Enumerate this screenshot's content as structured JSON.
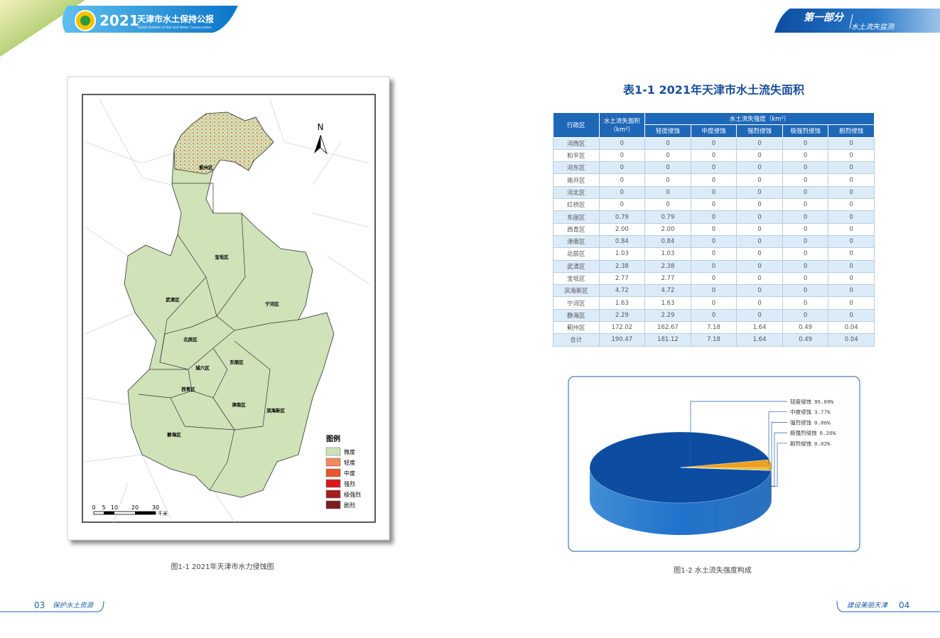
{
  "header": {
    "year": "2021",
    "title": "天津市水土保持公报",
    "subtitle": "Tianjin Bulletin of Soil and Water Conservation"
  },
  "section": {
    "part": "第一部分",
    "name": "水土流失监测"
  },
  "map": {
    "caption": "图1-1 2021年天津市水力侵蚀图",
    "north": "N",
    "legend_title": "图例",
    "legend": [
      {
        "label": "微度",
        "color": "#cfe2b8"
      },
      {
        "label": "轻度",
        "color": "#f08a5d"
      },
      {
        "label": "中度",
        "color": "#e8552f"
      },
      {
        "label": "强烈",
        "color": "#d7191c"
      },
      {
        "label": "极强烈",
        "color": "#a51f1f"
      },
      {
        "label": "剧烈",
        "color": "#7a1d1d"
      }
    ],
    "scale": [
      "0",
      "5",
      "10",
      "20",
      "30"
    ],
    "scale_unit": "千米",
    "districts": [
      "蓟州区",
      "宝坻区",
      "武清区",
      "宁河区",
      "北辰区",
      "东丽区",
      "城六区",
      "西青区",
      "津南区",
      "滨海新区",
      "静海区"
    ]
  },
  "table": {
    "title": "表1-1 2021年天津市水土流失面积",
    "header": [
      "行政区",
      "水土流失面积（km²）",
      "水土流失强度（km²）"
    ],
    "subheader": [
      "轻度侵蚀",
      "中度侵蚀",
      "强烈侵蚀",
      "极强烈侵蚀",
      "剧烈侵蚀"
    ],
    "rows": [
      [
        "河西区",
        "0",
        "0",
        "0",
        "0",
        "0",
        "0"
      ],
      [
        "和平区",
        "0",
        "0",
        "0",
        "0",
        "0",
        "0"
      ],
      [
        "河东区",
        "0",
        "0",
        "0",
        "0",
        "0",
        "0"
      ],
      [
        "南开区",
        "0",
        "0",
        "0",
        "0",
        "0",
        "0"
      ],
      [
        "河北区",
        "0",
        "0",
        "0",
        "0",
        "0",
        "0"
      ],
      [
        "红桥区",
        "0",
        "0",
        "0",
        "0",
        "0",
        "0"
      ],
      [
        "东丽区",
        "0.79",
        "0.79",
        "0",
        "0",
        "0",
        "0"
      ],
      [
        "西青区",
        "2.00",
        "2.00",
        "0",
        "0",
        "0",
        "0"
      ],
      [
        "津南区",
        "0.84",
        "0.84",
        "0",
        "0",
        "0",
        "0"
      ],
      [
        "北辰区",
        "1.03",
        "1.03",
        "0",
        "0",
        "0",
        "0"
      ],
      [
        "武清区",
        "2.38",
        "2.38",
        "0",
        "0",
        "0",
        "0"
      ],
      [
        "宝坻区",
        "2.77",
        "2.77",
        "0",
        "0",
        "0",
        "0"
      ],
      [
        "滨海新区",
        "4.72",
        "4.72",
        "0",
        "0",
        "0",
        "0"
      ],
      [
        "宁河区",
        "1.63",
        "1.63",
        "0",
        "0",
        "0",
        "0"
      ],
      [
        "静海区",
        "2.29",
        "2.29",
        "0",
        "0",
        "0",
        "0"
      ],
      [
        "蓟州区",
        "172.02",
        "162.67",
        "7.18",
        "1.64",
        "0.49",
        "0.04"
      ],
      [
        "合计",
        "190.47",
        "181.12",
        "7.18",
        "1.64",
        "0.49",
        "0.04"
      ]
    ]
  },
  "chart_data": {
    "type": "pie",
    "title": "图1-2 水土流失强度构成",
    "categories": [
      "轻度侵蚀",
      "中度侵蚀",
      "强烈侵蚀",
      "极强烈侵蚀",
      "剧烈侵蚀"
    ],
    "values": [
      95.09,
      3.77,
      0.86,
      0.26,
      0.02
    ],
    "value_labels": [
      "95.09%",
      "3.77%",
      "0.86%",
      "0.26%",
      "0.02%"
    ],
    "colors": [
      "#0c4da2",
      "#f0a020",
      "#d8c818",
      "#c0392b",
      "#7d3c98"
    ]
  },
  "footer": {
    "left_page": "03",
    "left_text": "保护水土资源",
    "right_text": "建设美丽天津",
    "right_page": "04"
  }
}
